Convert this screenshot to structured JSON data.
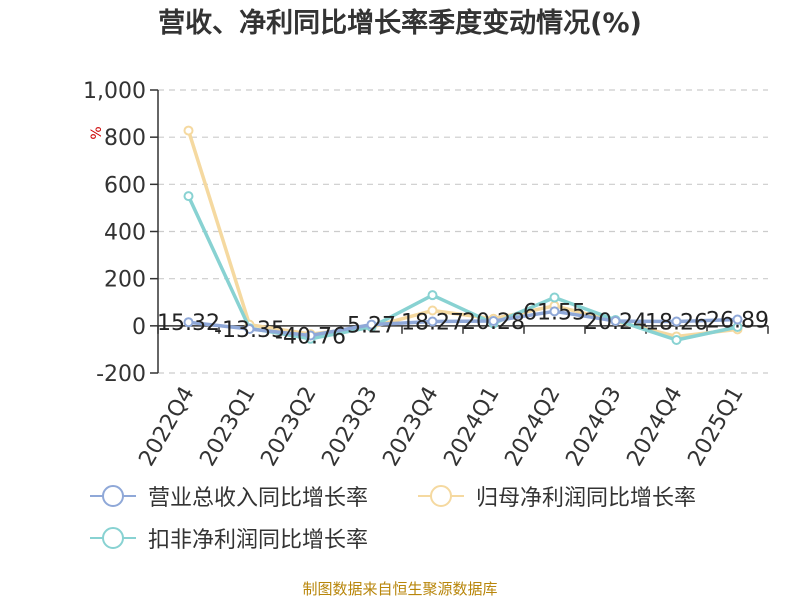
{
  "chart_data": {
    "type": "line",
    "title": "营收、净利同比增长率季度变动情况(%)",
    "y_unit": "%",
    "x": [
      "2022Q4",
      "2023Q1",
      "2023Q2",
      "2023Q3",
      "2023Q4",
      "2024Q1",
      "2024Q2",
      "2024Q3",
      "2024Q4",
      "2025Q1"
    ],
    "ylim": [
      -200,
      1000
    ],
    "yticks": [
      "-200",
      "0",
      "200",
      "400",
      "600",
      "800",
      "1,000"
    ],
    "grid": true,
    "legend_position": "bottom",
    "series": [
      {
        "name": "营业总收入同比增长率",
        "color": "#8fa8d8",
        "values": [
          15.32,
          -13.35,
          -40.76,
          5.27,
          18.27,
          20.28,
          61.55,
          20.24,
          18.26,
          26.89
        ],
        "labels": [
          "15.32",
          "-13.35",
          "-40.76",
          "5.27",
          "18.27",
          "20.28",
          "61.55",
          "20.24",
          "18.26",
          "26.89"
        ]
      },
      {
        "name": "归母净利润同比增长率",
        "color": "#f5d9a0",
        "values": [
          828,
          5,
          -35,
          -5,
          65,
          30,
          85,
          20,
          -45,
          -15
        ]
      },
      {
        "name": "扣非净利润同比增长率",
        "color": "#88d2d2",
        "values": [
          550,
          -10,
          -55,
          -5,
          130,
          10,
          120,
          25,
          -60,
          -5
        ]
      }
    ]
  },
  "source": "制图数据来自恒生聚源数据库"
}
